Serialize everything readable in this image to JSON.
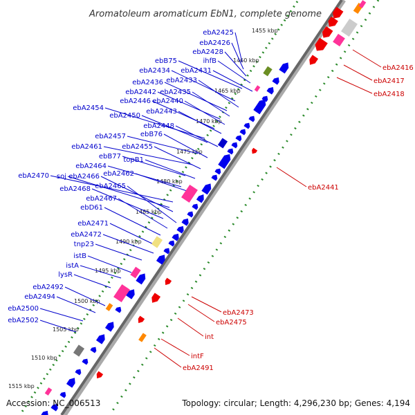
{
  "title": "Aromatoleum aromaticum EbN1, complete genome",
  "footer": {
    "accession": "Accession: NC_006513",
    "summary": "Topology: circular; Length: 4,296,230 bp; Genes: 4,194"
  },
  "colors": {
    "forward_gene": "#0000ee",
    "reverse_gene": "#ee0000",
    "forward_label": "#0000cc",
    "reverse_label": "#cc0000",
    "backbone": "#888888",
    "tick": "#2a8a2a",
    "misc_feature": "#ff3399",
    "repeat": "#ff8800",
    "rna": "#777777"
  },
  "kbp_ticks": [
    "1455 kbp",
    "1460 kbp",
    "1465 kbp",
    "1470 kbp",
    "1475 kbp",
    "1480 kbp",
    "1485 kbp",
    "1490 kbp",
    "1495 kbp",
    "1500 kbp",
    "1505 kbp",
    "1510 kbp",
    "1515 kbp"
  ],
  "forward_labels": [
    "ebA2425",
    "ebA2426",
    "ebA2428",
    "ihfB",
    "ebB75",
    "ebA2431",
    "ebA2434",
    "ebA2433",
    "ebA2436",
    "ebA2435",
    "ebA2442",
    "ebA2440",
    "ebA2446",
    "ebA2443",
    "ebA2454",
    "ebA2450",
    "ebA2448",
    "ebA2457",
    "ebB76",
    "ebA2461",
    "ebA2455",
    "ebB77",
    "topB1",
    "ebA2464",
    "ebA2462",
    "ebA2470",
    "soj",
    "ebA2466",
    "ebA2468",
    "ebA2465",
    "ebA2467",
    "ebD61",
    "ebA2471",
    "ebA2472",
    "tnp23",
    "istB",
    "istA",
    "lysR",
    "ebA2492",
    "ebA2494",
    "ebA2500",
    "ebA2502"
  ],
  "reverse_labels": [
    "ebA2416",
    "ebA2417",
    "ebA2418",
    "ebA2441",
    "ebA2473",
    "ebA2475",
    "int",
    "intF",
    "ebA2491"
  ]
}
